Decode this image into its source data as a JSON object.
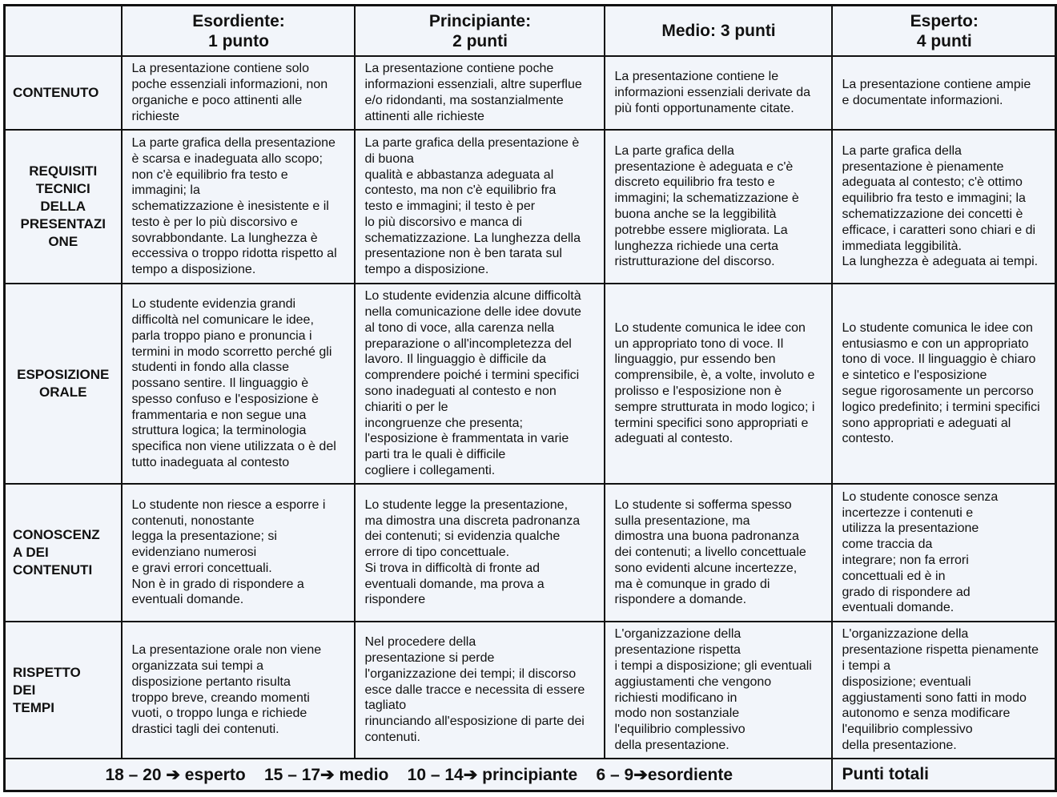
{
  "header": [
    "",
    "Esordiente:\n1 punto",
    "Principiante:\n2 punti",
    "Medio: 3 punti",
    "Esperto:\n4 punti"
  ],
  "rows": [
    {
      "criterion": "CONTENUTO",
      "center": false,
      "cells": [
        "La presentazione contiene solo\npoche essenziali informazioni, non\norganiche e poco attinenti alle\nrichieste",
        "La presentazione contiene poche\ninformazioni essenziali, altre superflue\ne/o ridondanti, ma sostanzialmente\nattinenti alle richieste",
        "La presentazione contiene le\ninformazioni essenziali derivate da\npiù fonti opportunamente citate.",
        "La presentazione contiene ampie\ne documentate informazioni."
      ]
    },
    {
      "criterion": "REQUISITI\nTECNICI\nDELLA\nPRESENTAZI\nONE",
      "center": true,
      "cells": [
        "La parte grafica della presentazione\nè scarsa e inadeguata allo scopo;\nnon c'è equilibrio fra testo e\nimmagini; la\nschematizzazione è inesistente e il\ntesto è per lo più discorsivo e\nsovrabbondante. La lunghezza è\neccessiva o troppo ridotta rispetto al\ntempo a disposizione.",
        "La parte grafica della presentazione è\ndi buona\nqualità e abbastanza adeguata al\ncontesto, ma non c'è equilibrio fra\ntesto e immagini; il testo è per\nlo più discorsivo e manca di\nschematizzazione. La lunghezza della\npresentazione non è ben tarata sul\ntempo a disposizione.",
        "La parte grafica della\npresentazione è adeguata e c'è\ndiscreto equilibrio fra testo e\nimmagini; la schematizzazione è\nbuona anche se la leggibilità\npotrebbe essere migliorata. La\nlunghezza richiede una certa\nristrutturazione del discorso.",
        "La parte grafica della\npresentazione è pienamente\nadeguata al contesto; c'è ottimo\nequilibrio fra testo e immagini; la\nschematizzazione dei concetti è\nefficace, i caratteri sono chiari e di\nimmediata leggibilità.\nLa lunghezza è adeguata ai tempi."
      ]
    },
    {
      "criterion": "ESPOSIZIONE\nORALE",
      "center": true,
      "cells": [
        "Lo studente evidenzia grandi\ndifficoltà nel comunicare le idee,\nparla troppo piano e pronuncia i\ntermini in modo scorretto perché gli\nstudenti in fondo alla classe\npossano sentire. Il linguaggio è\nspesso confuso e l'esposizione è\nframmentaria e non segue una\nstruttura logica; la terminologia\nspecifica non viene utilizzata o è del\ntutto inadeguata al contesto",
        "Lo studente evidenzia alcune difficoltà\nnella comunicazione delle idee dovute\nal tono di voce, alla carenza nella\npreparazione o all'incompletezza del\nlavoro. Il linguaggio è difficile da\ncomprendere poiché i termini specifici\nsono inadeguati al contesto e non\nchiariti o per le\nincongruenze che presenta;\nl'esposizione è frammentata in varie\nparti tra le quali è difficile\ncogliere i collegamenti.",
        "Lo studente comunica le idee con\nun appropriato tono di voce. Il\nlinguaggio, pur essendo ben\ncomprensibile, è, a volte, involuto e\nprolisso e l'esposizione non è\nsempre strutturata in modo logico; i\ntermini specifici sono appropriati e\nadeguati al contesto.",
        "Lo studente comunica le idee con\nentusiasmo e con un appropriato\ntono di voce. Il linguaggio è chiaro\ne sintetico e l'esposizione\nsegue rigorosamente un percorso\nlogico predefinito; i termini specifici\nsono appropriati e adeguati al\ncontesto."
      ]
    },
    {
      "criterion": "CONOSCENZ\nA DEI\nCONTENUTI",
      "center": false,
      "cells": [
        "Lo studente non riesce a esporre i\ncontenuti, nonostante\nlegga la presentazione; si\nevidenziano numerosi\ne gravi errori concettuali.\nNon è in grado di rispondere a\neventuali domande.",
        "Lo studente legge la presentazione,\nma dimostra una discreta padronanza\ndei contenuti; si evidenzia qualche\nerrore di tipo concettuale.\nSi trova in difficoltà di fronte ad\neventuali domande, ma prova a\nrispondere",
        "Lo studente si sofferma spesso\nsulla presentazione, ma\ndimostra una buona padronanza\ndei contenuti; a livello concettuale\nsono evidenti alcune incertezze,\nma è comunque in grado di\nrispondere a domande.",
        "Lo studente conosce senza\nincertezze i contenuti e\nutilizza la presentazione\ncome traccia da\nintegrare; non fa errori\nconcettuali ed è in\ngrado di rispondere ad\neventuali domande."
      ]
    },
    {
      "criterion": "RISPETTO\nDEI\nTEMPI",
      "center": false,
      "cells": [
        "La presentazione orale non viene\norganizzata sui tempi a\ndisposizione pertanto risulta\ntroppo breve, creando momenti\nvuoti, o troppo lunga e richiede\ndrastici tagli dei contenuti.",
        "Nel procedere della\npresentazione si perde\nl'organizzazione dei tempi; il discorso\nesce dalle tracce e necessita di essere\ntagliato\nrinunciando all'esposizione di parte dei\ncontenuti.",
        "L'organizzazione della\npresentazione rispetta\ni tempi a disposizione; gli eventuali\naggiustamenti che vengono\nrichiesti  modificano in\nmodo non sostanziale\nl'equilibrio complessivo\ndella presentazione.",
        "L'organizzazione della\npresentazione rispetta pienamente\ni tempi a\ndisposizione; eventuali\naggiustamenti sono fatti in modo\nautonomo e senza modificare\nl'equilibrio complessivo\ndella presentazione."
      ]
    }
  ],
  "footer": {
    "scale": "18 – 20 ➔ esperto    15 – 17➔ medio    10 – 14➔ principiante    6 – 9➔esordiente",
    "total_label": "Punti totali"
  }
}
